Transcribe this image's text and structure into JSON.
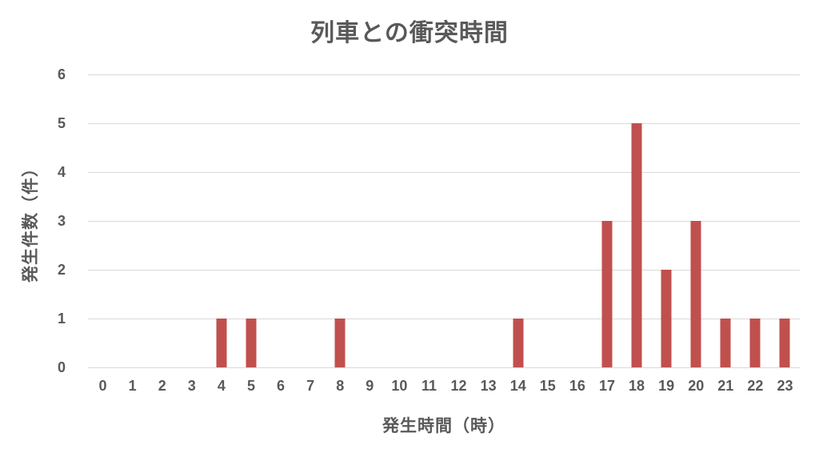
{
  "chart_data": {
    "type": "bar",
    "title": "列車との衝突時間",
    "xlabel": "発生時間（時）",
    "ylabel": "発生件数（件）",
    "categories": [
      "0",
      "1",
      "2",
      "3",
      "4",
      "5",
      "6",
      "7",
      "8",
      "9",
      "10",
      "11",
      "12",
      "13",
      "14",
      "15",
      "16",
      "17",
      "18",
      "19",
      "20",
      "21",
      "22",
      "23"
    ],
    "values": [
      0,
      0,
      0,
      0,
      1,
      1,
      0,
      0,
      1,
      0,
      0,
      0,
      0,
      0,
      1,
      0,
      0,
      3,
      5,
      2,
      3,
      1,
      1,
      1
    ],
    "ylim": [
      0,
      6
    ],
    "yticks": [
      0,
      1,
      2,
      3,
      4,
      5,
      6
    ],
    "grid": true,
    "legend": "none",
    "bar_color": "#C0504D",
    "gridline_color": "#D9D9D9",
    "axis_line_color": "#D9D9D9",
    "text_color": "#595959",
    "background_color": "#FFFFFF"
  }
}
